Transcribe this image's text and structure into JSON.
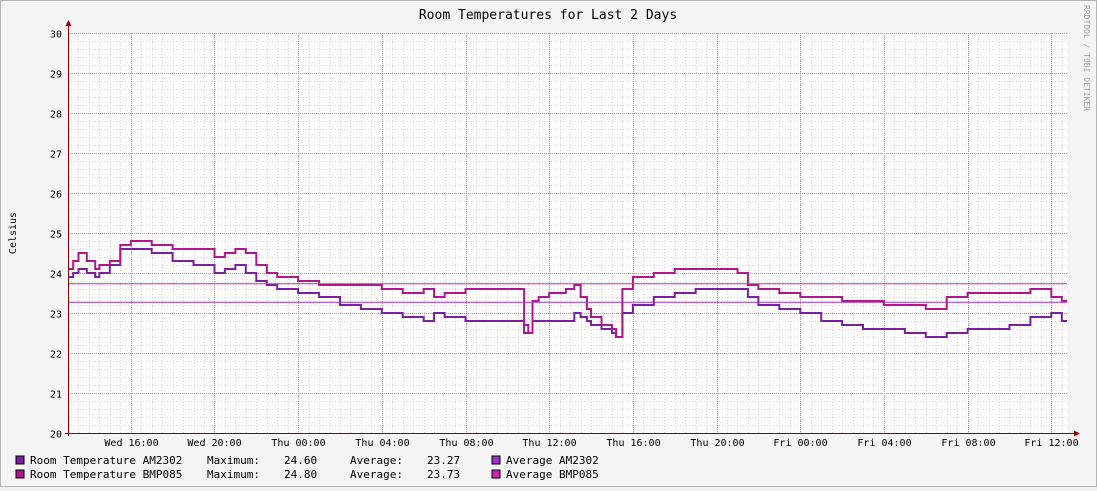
{
  "chart_data": {
    "type": "line",
    "title": "Room Temperatures for Last 2 Days",
    "ylabel": "Celsius",
    "xlabel": "",
    "watermark": "RRDTOOL / TOBI OETIKER",
    "ylim": [
      20,
      30
    ],
    "yticks": [
      "20",
      "21",
      "22",
      "23",
      "24",
      "25",
      "26",
      "27",
      "28",
      "29",
      "30"
    ],
    "xlim": [
      0,
      47.75
    ],
    "xticks": [
      {
        "t": 3.0,
        "label": "Wed 16:00"
      },
      {
        "t": 7.0,
        "label": "Wed 20:00"
      },
      {
        "t": 11.0,
        "label": "Thu 00:00"
      },
      {
        "t": 15.0,
        "label": "Thu 04:00"
      },
      {
        "t": 19.0,
        "label": "Thu 08:00"
      },
      {
        "t": 23.0,
        "label": "Thu 12:00"
      },
      {
        "t": 27.0,
        "label": "Thu 16:00"
      },
      {
        "t": 31.0,
        "label": "Thu 20:00"
      },
      {
        "t": 35.0,
        "label": "Fri 00:00"
      },
      {
        "t": 39.0,
        "label": "Fri 04:00"
      },
      {
        "t": 43.0,
        "label": "Fri 08:00"
      },
      {
        "t": 47.0,
        "label": "Fri 12:00"
      }
    ],
    "grid": true,
    "series": [
      {
        "name": "Room Temperature AM2302",
        "color": "#7a1fa0",
        "maximum": "24.60",
        "average": "23.27",
        "x": [
          0,
          0.25,
          0.5,
          0.9,
          1.3,
          1.5,
          2.0,
          2.5,
          3.0,
          4.0,
          5.0,
          6.0,
          7.0,
          7.5,
          8.0,
          8.5,
          9.0,
          9.5,
          10.0,
          11.0,
          12.0,
          13.0,
          14.0,
          15.0,
          16.0,
          17.0,
          17.5,
          18.0,
          19.0,
          20.0,
          21.0,
          21.5,
          21.8,
          22.0,
          22.2,
          22.5,
          23.0,
          23.8,
          24.2,
          24.5,
          24.8,
          25.0,
          25.5,
          26.0,
          26.2,
          26.5,
          27.0,
          28.0,
          29.0,
          30.0,
          31.0,
          32.0,
          32.5,
          33.0,
          34.0,
          35.0,
          36.0,
          37.0,
          38.0,
          39.0,
          40.0,
          41.0,
          42.0,
          43.0,
          44.0,
          45.0,
          46.0,
          47.0,
          47.5
        ],
        "y": [
          23.9,
          24.0,
          24.1,
          24.0,
          23.9,
          24.0,
          24.2,
          24.6,
          24.6,
          24.5,
          24.3,
          24.2,
          24.0,
          24.1,
          24.2,
          24.0,
          23.8,
          23.7,
          23.6,
          23.5,
          23.4,
          23.2,
          23.1,
          23.0,
          22.9,
          22.8,
          23.0,
          22.9,
          22.8,
          22.8,
          22.8,
          22.8,
          22.5,
          22.5,
          22.8,
          22.8,
          22.8,
          22.8,
          23.0,
          22.9,
          22.8,
          22.7,
          22.6,
          22.5,
          22.4,
          23.0,
          23.2,
          23.4,
          23.5,
          23.6,
          23.6,
          23.6,
          23.4,
          23.2,
          23.1,
          23.0,
          22.8,
          22.7,
          22.6,
          22.6,
          22.5,
          22.4,
          22.5,
          22.6,
          22.6,
          22.7,
          22.9,
          23.0,
          22.8
        ]
      },
      {
        "name": "Room Temperature BMP085",
        "color": "#b0188a",
        "maximum": "24.80",
        "average": "23.73",
        "x": [
          0,
          0.25,
          0.5,
          0.9,
          1.3,
          1.5,
          2.0,
          2.5,
          3.0,
          4.0,
          5.0,
          6.0,
          7.0,
          7.5,
          8.0,
          8.5,
          9.0,
          9.5,
          10.0,
          11.0,
          12.0,
          13.0,
          14.0,
          15.0,
          16.0,
          17.0,
          17.5,
          18.0,
          19.0,
          20.0,
          21.0,
          21.5,
          21.8,
          22.0,
          22.2,
          22.5,
          23.0,
          23.8,
          24.2,
          24.5,
          24.8,
          25.0,
          25.5,
          26.0,
          26.2,
          26.5,
          27.0,
          28.0,
          29.0,
          30.0,
          31.0,
          32.0,
          32.5,
          33.0,
          34.0,
          35.0,
          36.0,
          37.0,
          38.0,
          39.0,
          40.0,
          41.0,
          42.0,
          43.0,
          44.0,
          45.0,
          46.0,
          47.0,
          47.5
        ],
        "y": [
          24.1,
          24.3,
          24.5,
          24.3,
          24.1,
          24.2,
          24.3,
          24.7,
          24.8,
          24.7,
          24.6,
          24.6,
          24.4,
          24.5,
          24.6,
          24.5,
          24.2,
          24.0,
          23.9,
          23.8,
          23.7,
          23.7,
          23.7,
          23.6,
          23.5,
          23.6,
          23.4,
          23.5,
          23.6,
          23.6,
          23.6,
          23.6,
          22.7,
          22.5,
          23.3,
          23.4,
          23.5,
          23.6,
          23.7,
          23.4,
          23.1,
          22.9,
          22.7,
          22.6,
          22.4,
          23.6,
          23.9,
          24.0,
          24.1,
          24.1,
          24.1,
          24.0,
          23.7,
          23.6,
          23.5,
          23.4,
          23.4,
          23.3,
          23.3,
          23.2,
          23.2,
          23.1,
          23.4,
          23.5,
          23.5,
          23.5,
          23.6,
          23.4,
          23.3
        ]
      },
      {
        "name": "Average AM2302",
        "color": "#9b30c8",
        "value": 23.27
      },
      {
        "name": "Average BMP085",
        "color": "#d020b0",
        "value": 23.73
      }
    ],
    "legend_labels": {
      "maximum": "Maximum:",
      "average": "Average:"
    }
  }
}
